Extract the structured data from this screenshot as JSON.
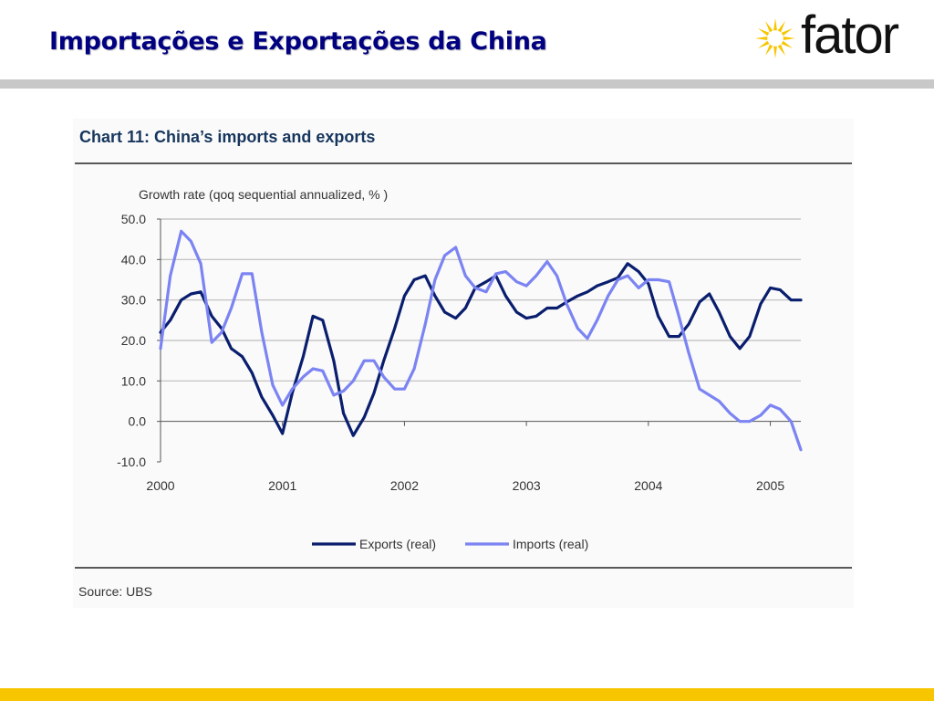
{
  "slide": {
    "title": "Importações e Exportações da China",
    "logo_text": "fator"
  },
  "colors": {
    "title": "#000080",
    "chart_title": "#17365d",
    "exports": "#0a1e6e",
    "imports": "#7b84f2",
    "logo_star": "#f7c600",
    "bottom_bar": "#f7c600",
    "top_rule": "#c8c8c8"
  },
  "chart_data": {
    "type": "line",
    "title": "Chart 11: China’s imports and exports",
    "ylabel": "Growth rate (qoq sequential annualized, % )",
    "source": "Source: UBS",
    "ylim": [
      -10,
      50
    ],
    "yticks": [
      "50.0",
      "40.0",
      "30.0",
      "20.0",
      "10.0",
      "0.0",
      "-10.0"
    ],
    "xlim": [
      2000,
      2005.25
    ],
    "xticks": [
      "2000",
      "2001",
      "2002",
      "2003",
      "2004",
      "2005"
    ],
    "grid": true,
    "legend_position": "bottom-center",
    "series": [
      {
        "name": "Exports (real)",
        "color": "#0a1e6e",
        "x": [
          2000.0,
          2000.08,
          2000.17,
          2000.25,
          2000.33,
          2000.42,
          2000.5,
          2000.58,
          2000.67,
          2000.75,
          2000.83,
          2000.92,
          2001.0,
          2001.08,
          2001.17,
          2001.25,
          2001.33,
          2001.42,
          2001.5,
          2001.58,
          2001.67,
          2001.75,
          2001.83,
          2001.92,
          2002.0,
          2002.08,
          2002.17,
          2002.25,
          2002.33,
          2002.42,
          2002.5,
          2002.58,
          2002.67,
          2002.75,
          2002.83,
          2002.92,
          2003.0,
          2003.08,
          2003.17,
          2003.25,
          2003.33,
          2003.42,
          2003.5,
          2003.58,
          2003.67,
          2003.75,
          2003.83,
          2003.92,
          2004.0,
          2004.08,
          2004.17,
          2004.25,
          2004.33,
          2004.42,
          2004.5,
          2004.58,
          2004.67,
          2004.75,
          2004.83,
          2004.92,
          2005.0,
          2005.08,
          2005.17,
          2005.25
        ],
        "y": [
          22,
          25,
          30,
          31.5,
          32,
          26,
          23,
          18,
          16,
          12,
          6,
          1.5,
          -3,
          7,
          16,
          26,
          25,
          15,
          2,
          -3.5,
          1,
          7,
          15,
          23,
          31,
          35,
          36,
          31,
          27,
          25.5,
          28,
          33,
          34.5,
          36,
          31,
          27,
          25.5,
          26,
          28,
          28,
          29.5,
          31,
          32,
          33.5,
          34.5,
          35.5,
          39,
          37,
          34,
          26,
          21,
          21,
          24,
          29.5,
          31.5,
          27,
          21,
          18,
          21,
          29,
          33,
          32.5,
          30,
          30
        ]
      },
      {
        "name": "Imports (real)",
        "color": "#7b84f2",
        "x": [
          2000.0,
          2000.08,
          2000.17,
          2000.25,
          2000.33,
          2000.42,
          2000.5,
          2000.58,
          2000.67,
          2000.75,
          2000.83,
          2000.92,
          2001.0,
          2001.08,
          2001.17,
          2001.25,
          2001.33,
          2001.42,
          2001.5,
          2001.58,
          2001.67,
          2001.75,
          2001.83,
          2001.92,
          2002.0,
          2002.08,
          2002.17,
          2002.25,
          2002.33,
          2002.42,
          2002.5,
          2002.58,
          2002.67,
          2002.75,
          2002.83,
          2002.92,
          2003.0,
          2003.08,
          2003.17,
          2003.25,
          2003.33,
          2003.42,
          2003.5,
          2003.58,
          2003.67,
          2003.75,
          2003.83,
          2003.92,
          2004.0,
          2004.08,
          2004.17,
          2004.25,
          2004.33,
          2004.42,
          2004.5,
          2004.58,
          2004.67,
          2004.75,
          2004.83,
          2004.92,
          2005.0,
          2005.08,
          2005.17,
          2005.25
        ],
        "y": [
          18,
          36,
          47,
          44.5,
          39,
          19.5,
          22,
          28,
          36.5,
          36.5,
          22,
          9,
          4,
          8,
          11,
          13,
          12.5,
          6.5,
          7.5,
          10,
          15,
          15,
          11,
          8,
          8,
          13,
          24,
          35,
          41,
          43,
          36,
          33,
          32,
          36.5,
          37,
          34.5,
          33.5,
          36,
          39.5,
          36,
          29,
          23,
          20.5,
          25,
          31,
          35,
          36,
          33,
          35,
          35,
          34.5,
          26,
          17,
          8,
          6.5,
          5,
          2,
          0,
          0,
          1.5,
          4,
          3,
          0,
          -7
        ]
      }
    ]
  }
}
